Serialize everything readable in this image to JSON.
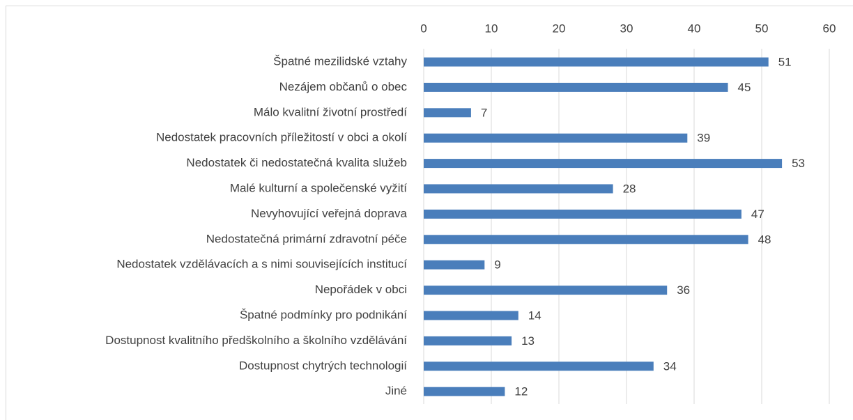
{
  "chart_data": {
    "type": "bar",
    "categories": [
      "Špatné mezilidské vztahy",
      "Nezájem občanů o obec ",
      "Málo kvalitní životní prostředí",
      "Nedostatek pracovních příležitostí v obci a okolí",
      "Nedostatek či nedostatečná kvalita služeb",
      "Malé kulturní a společenské vyžití",
      "Nevyhovující veřejná doprava",
      "Nedostatečná primární zdravotní péče",
      "Nedostatek vzdělávacích a s nimi souvisejících institucí",
      "Nepořádek v obci",
      "Špatné podmínky pro podnikání",
      "Dostupnost kvalitního předškolního a školního vzdělávání",
      "Dostupnost chytrých technologií",
      "Jiné"
    ],
    "values": [
      51,
      45,
      7,
      39,
      53,
      28,
      47,
      48,
      9,
      36,
      14,
      13,
      34,
      12
    ],
    "color": "#4a7ebb",
    "xlim": [
      0,
      60
    ],
    "xticks": [
      0,
      10,
      20,
      30,
      40,
      50,
      60
    ],
    "grid": true
  }
}
